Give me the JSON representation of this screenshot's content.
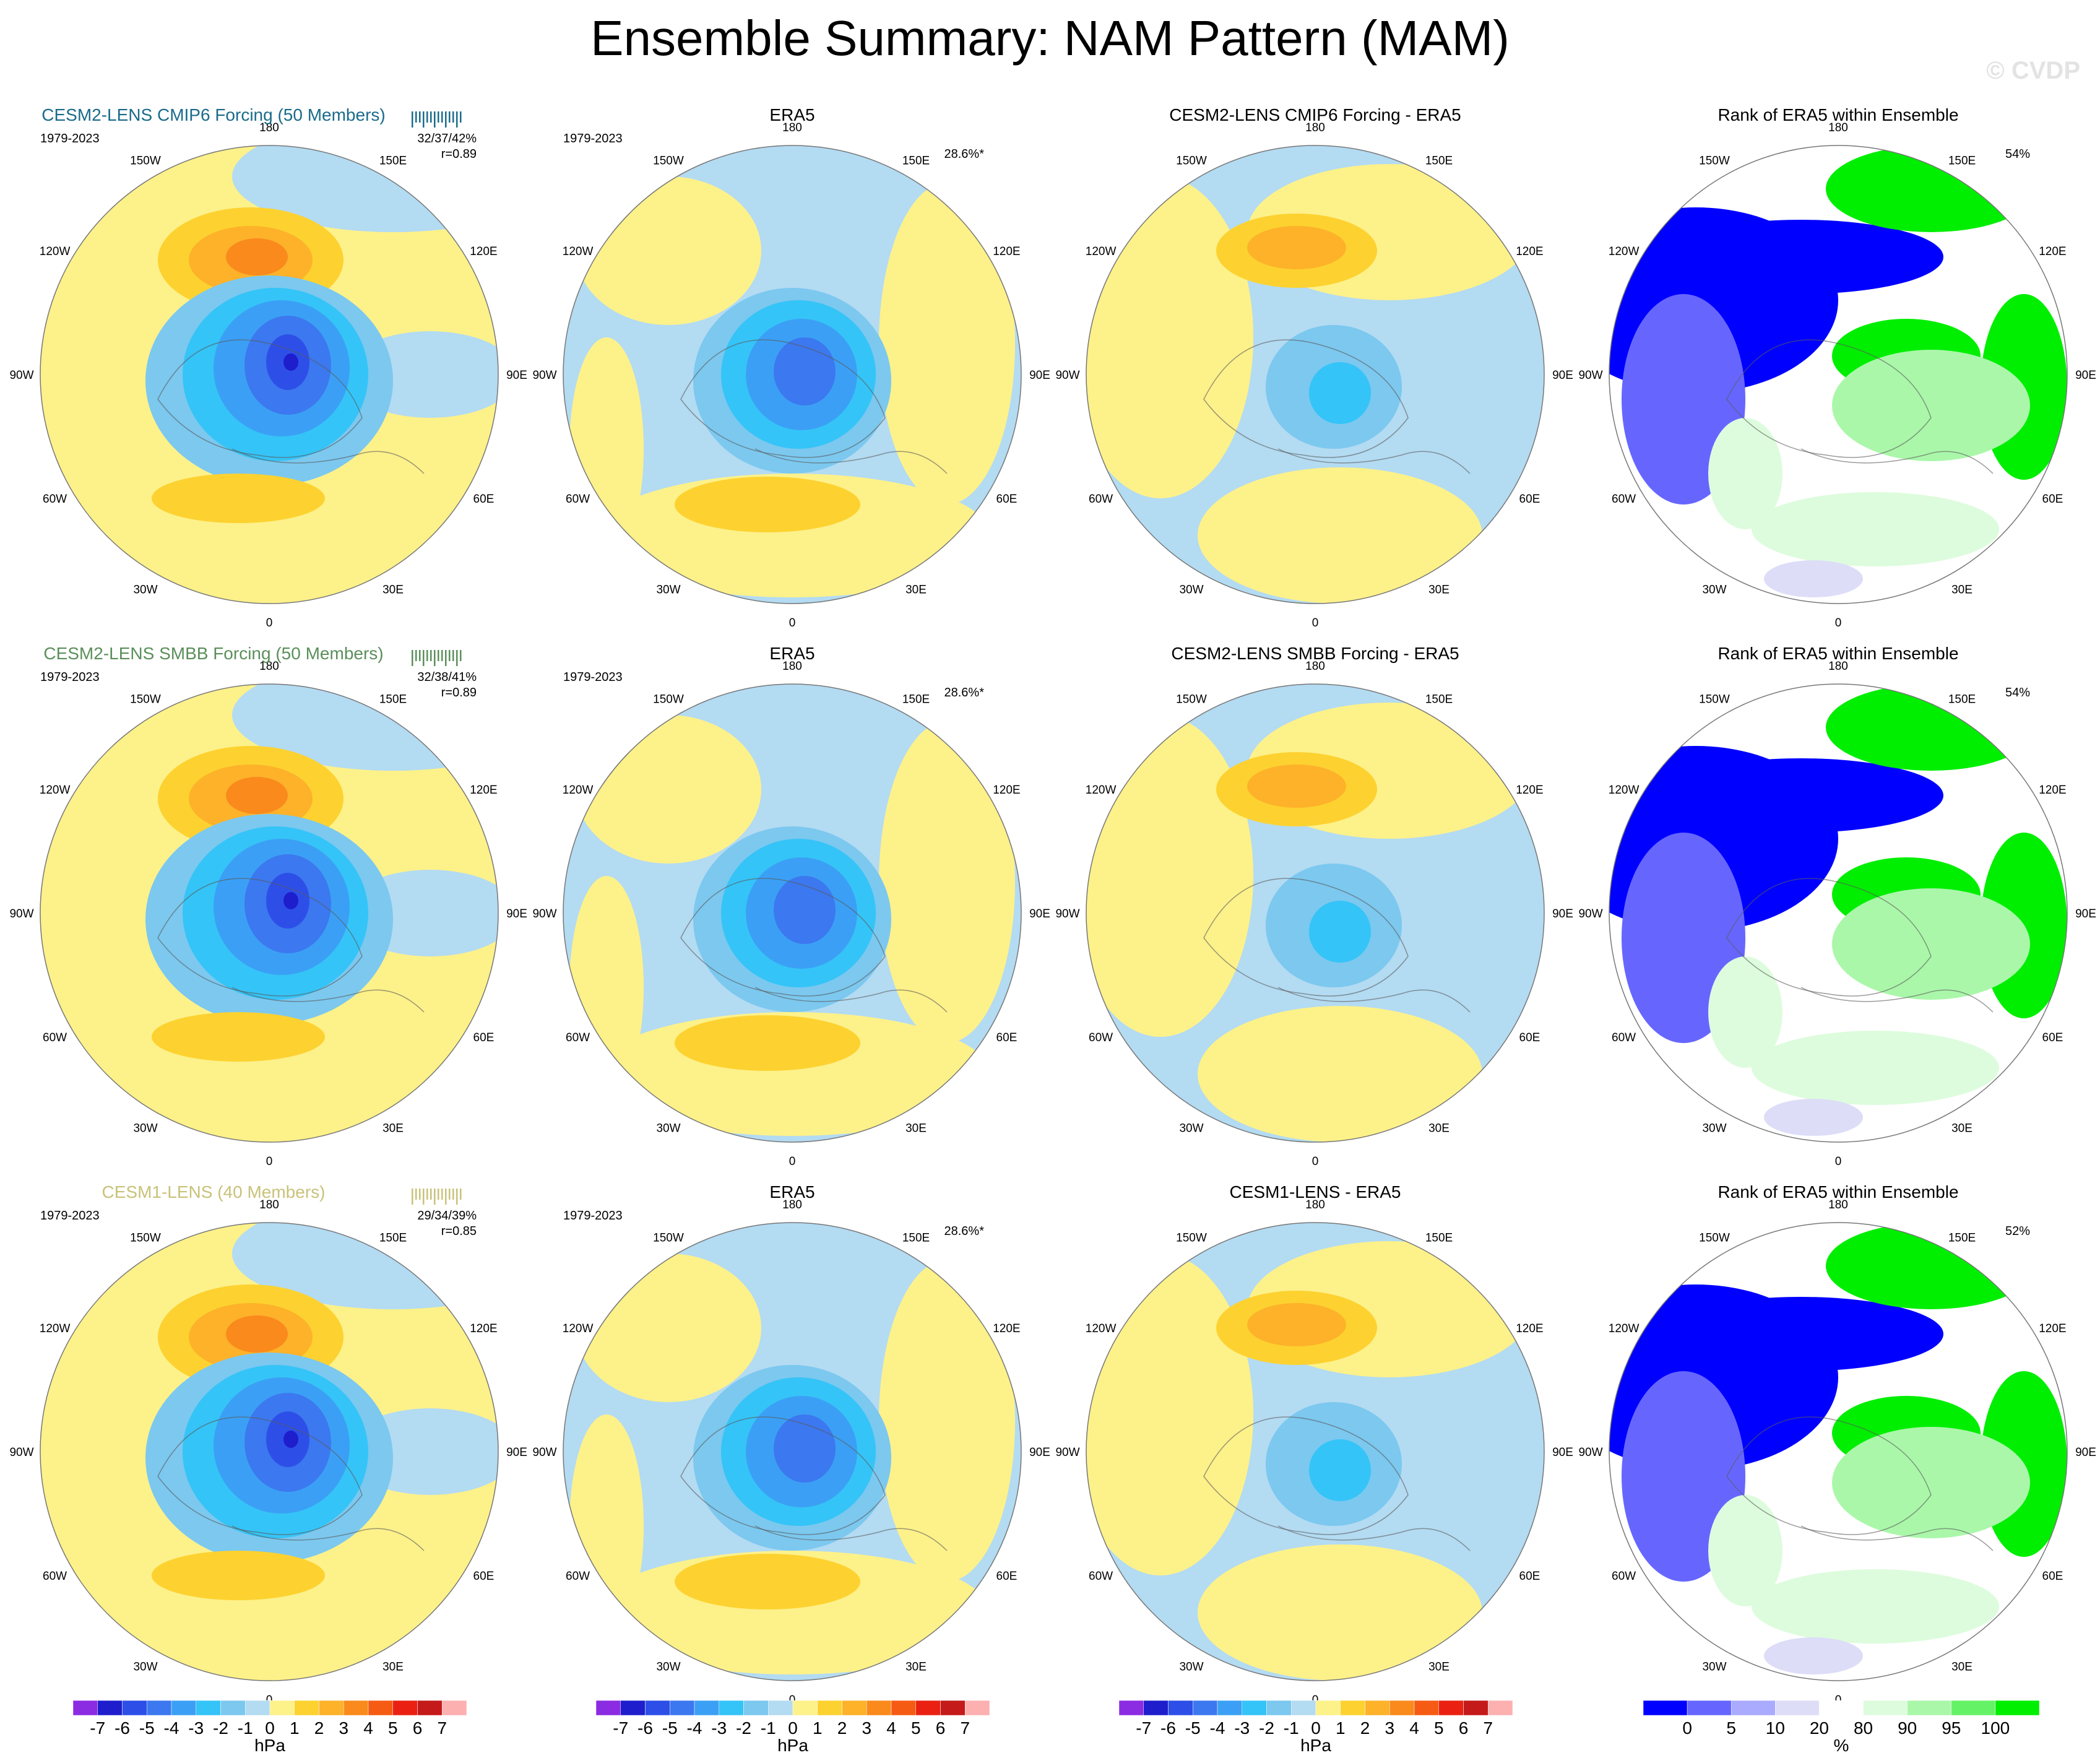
{
  "title": "Ensemble Summary: NAM Pattern (MAM)",
  "watermark": "© CVDP",
  "colors": {
    "map_cmip6_title": "#1a6b8a",
    "map_smbb_title": "#5b8f5b",
    "map_cesm1_title": "#c8c27a",
    "ocean_blue": "#b3dbf2",
    "land_yellow": "#fdf18a"
  },
  "lon_labels": [
    "180",
    "150E",
    "120E",
    "90E",
    "60E",
    "30E",
    "0",
    "30W",
    "60W",
    "90W",
    "120W",
    "150W"
  ],
  "rows": [
    {
      "panels": [
        {
          "type": "ens",
          "title": "CESM2-LENS CMIP6 Forcing (50 Members)",
          "years": "1979-2023",
          "stats1": "32/37/42%",
          "stats2": "r=0.89",
          "title_color": "#1a6b8a"
        },
        {
          "type": "obs",
          "title": "ERA5",
          "years": "1979-2023",
          "corner": "28.6%*"
        },
        {
          "type": "diff",
          "title": "CESM2-LENS CMIP6 Forcing - ERA5"
        },
        {
          "type": "rank",
          "title": "Rank of ERA5 within Ensemble",
          "corner": "54%"
        }
      ]
    },
    {
      "panels": [
        {
          "type": "ens",
          "title": "CESM2-LENS SMBB Forcing (50 Members)",
          "years": "1979-2023",
          "stats1": "32/38/41%",
          "stats2": "r=0.89",
          "title_color": "#5b8f5b"
        },
        {
          "type": "obs",
          "title": "ERA5",
          "years": "1979-2023",
          "corner": "28.6%*"
        },
        {
          "type": "diff",
          "title": "CESM2-LENS SMBB Forcing - ERA5"
        },
        {
          "type": "rank",
          "title": "Rank of ERA5 within Ensemble",
          "corner": "54%"
        }
      ]
    },
    {
      "panels": [
        {
          "type": "ens",
          "title": "CESM1-LENS (40 Members)",
          "years": "1979-2023",
          "stats1": "29/34/39%",
          "stats2": "r=0.85",
          "title_color": "#c8c27a"
        },
        {
          "type": "obs",
          "title": "ERA5",
          "years": "1979-2023",
          "corner": "28.6%*"
        },
        {
          "type": "diff",
          "title": "CESM1-LENS - ERA5"
        },
        {
          "type": "rank",
          "title": "Rank of ERA5 within Ensemble",
          "corner": "52%"
        }
      ]
    }
  ],
  "colorbar_hpa": {
    "unit": "hPa",
    "labels": [
      "-7",
      "-6",
      "-5",
      "-4",
      "-3",
      "-2",
      "-1",
      "0",
      "1",
      "2",
      "3",
      "4",
      "5",
      "6",
      "7"
    ],
    "colors": [
      "#8b2be2",
      "#1e1ecd",
      "#2d4fe8",
      "#3c78ef",
      "#3ba0f5",
      "#35c4f7",
      "#7cc8ef",
      "#b3dbf2",
      "#fdf18a",
      "#fdd230",
      "#fdb22a",
      "#fa8a1c",
      "#f65b14",
      "#ea2112",
      "#c41a1a",
      "#fdb0b0"
    ]
  },
  "colorbar_rank": {
    "unit": "%",
    "labels": [
      "0",
      "5",
      "10",
      "20",
      "80",
      "90",
      "95",
      "100"
    ],
    "colors": [
      "#0000ff",
      "#6666ff",
      "#aaaaff",
      "#ddddf8",
      "#ffffff",
      "#ddfcdd",
      "#aaf7aa",
      "#66f266",
      "#00ee00"
    ]
  }
}
